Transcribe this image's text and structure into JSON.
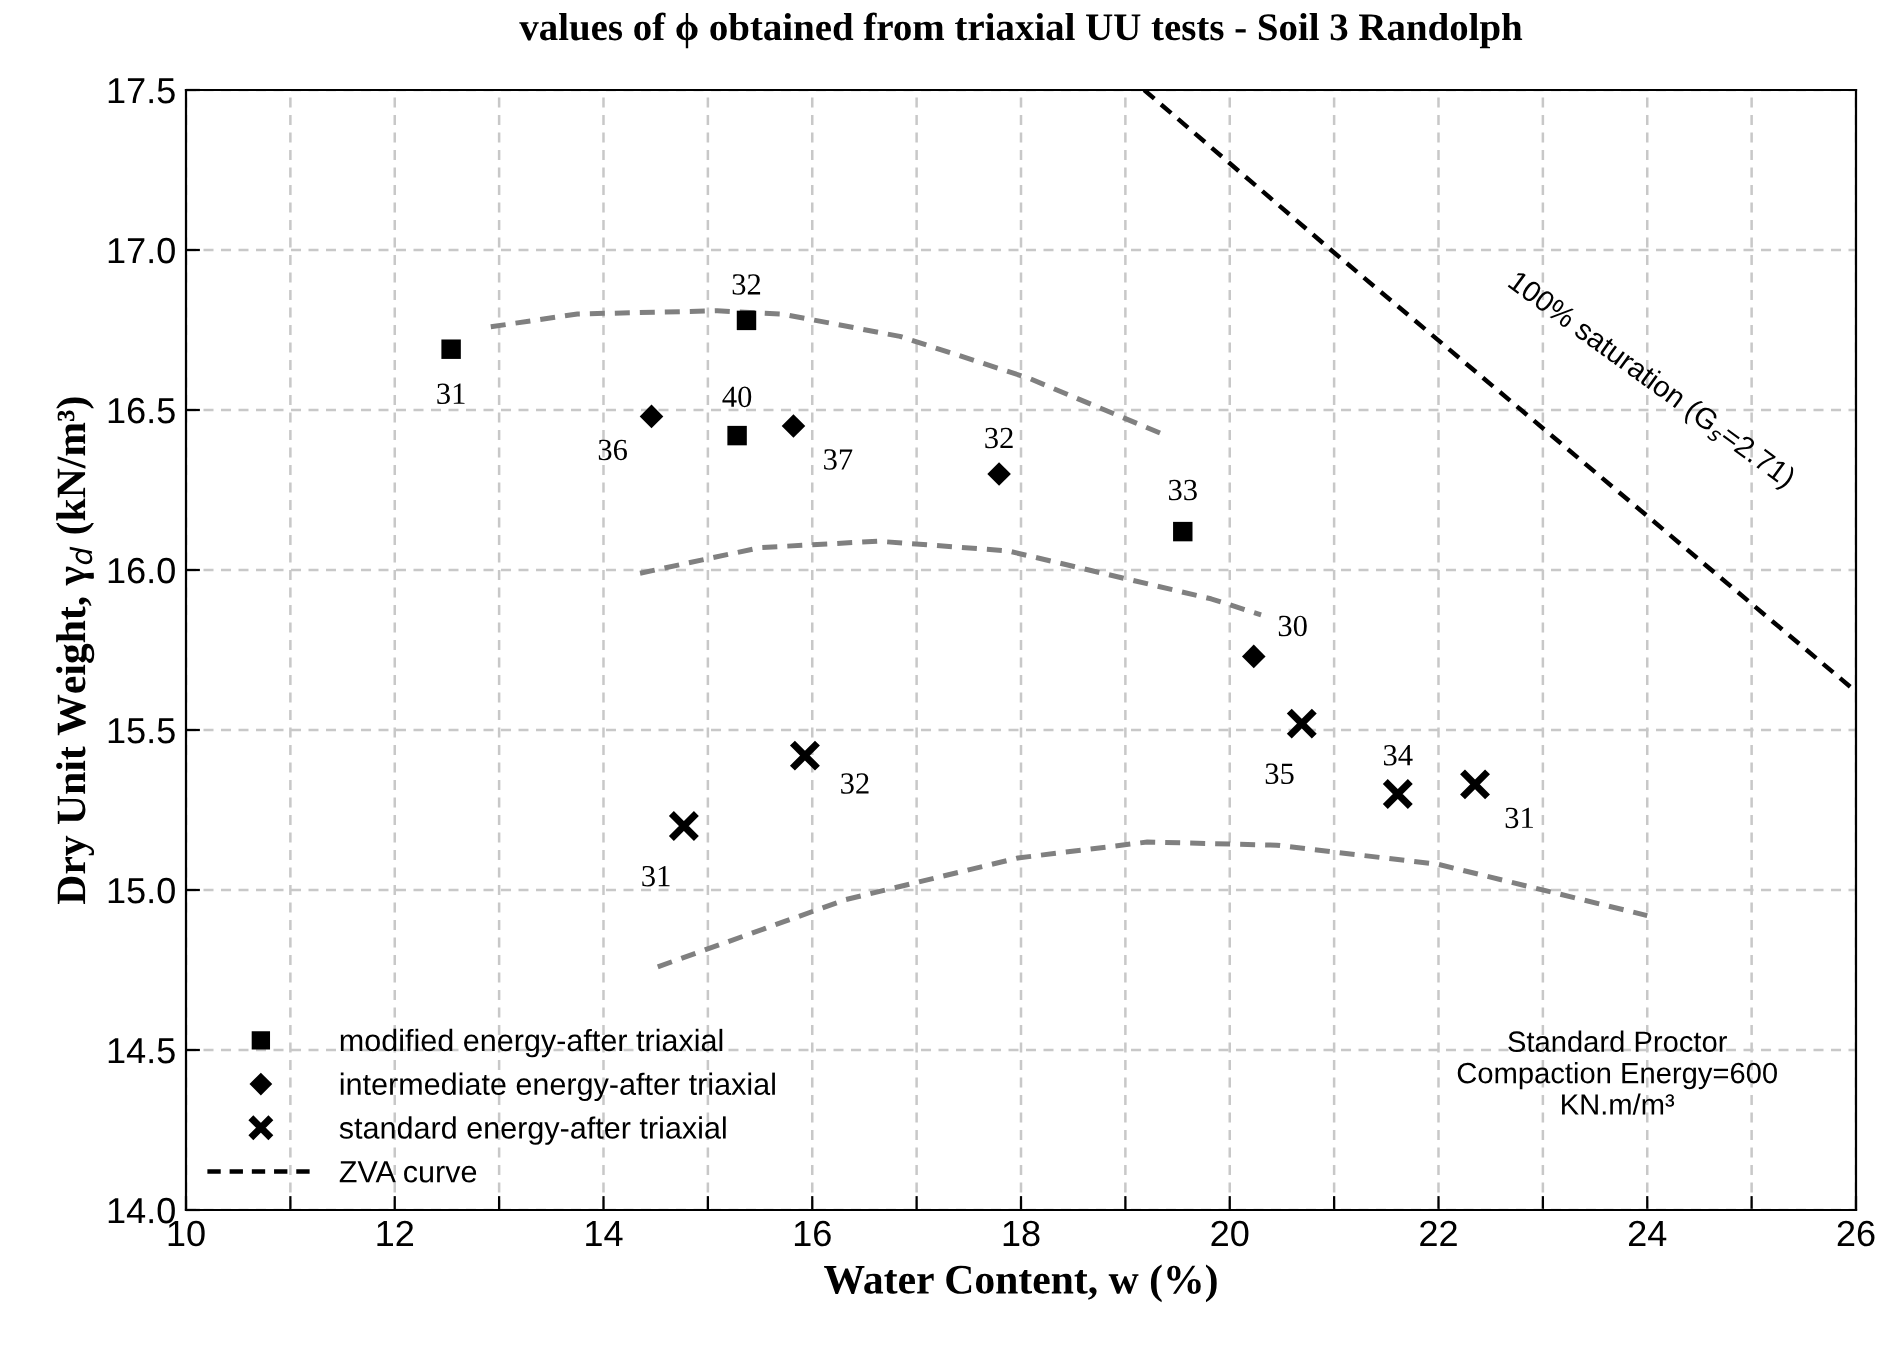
{
  "chart_data": {
    "type": "scatter",
    "title": "values of ϕ obtained from triaxial UU tests - Soil 3 Randolph",
    "xlabel": "Water Content, w (%)",
    "ylabel": "Dry Unit Weight, γ$_{d}$ (kN/m³)",
    "xlim": [
      10,
      26
    ],
    "ylim": [
      14,
      17.5
    ],
    "xticks": [
      10,
      {
        "value": 11,
        "label": null
      },
      12,
      {
        "value": 13,
        "label": null
      },
      14,
      {
        "value": 15,
        "label": null
      },
      16,
      {
        "value": 17,
        "label": null
      },
      18,
      {
        "value": 19,
        "label": null
      },
      20,
      {
        "value": 21,
        "label": null
      },
      22,
      {
        "value": 23,
        "label": null
      },
      24,
      {
        "value": 25,
        "label": null
      },
      26
    ],
    "yticks": [
      {
        "value": 14,
        "label": "14.0"
      },
      14.5,
      {
        "value": 15,
        "label": "15.0"
      },
      15.5,
      {
        "value": 16,
        "label": "16.0"
      },
      16.5,
      {
        "value": 17,
        "label": "17.0"
      },
      17.5
    ],
    "grid": true,
    "legend": "bottom left",
    "series": [
      {
        "name": "modified energy-after triaxial",
        "marker": "square",
        "color": "#000000",
        "x": [
          12.54,
          15.37,
          15.28,
          19.55
        ],
        "values": [
          16.69,
          16.78,
          16.42,
          16.12
        ]
      },
      {
        "name": "intermediate energy-after triaxial",
        "marker": "diamond",
        "color": "#000000",
        "x": [
          14.46,
          15.82,
          17.79,
          20.23
        ],
        "values": [
          16.48,
          16.45,
          16.3,
          15.73
        ]
      },
      {
        "name": "standard energy-after triaxial",
        "marker": "cross",
        "color": "#000000",
        "x": [
          14.77,
          15.93,
          20.69,
          21.61,
          22.35
        ],
        "values": [
          15.2,
          15.42,
          15.52,
          15.3,
          15.33
        ]
      },
      {
        "name": "ZVA curve",
        "type": "line",
        "line_style": "dashed",
        "color": "#000000",
        "x": [
          19.18,
          20.97,
          26
        ],
        "values": [
          17.5,
          17.0,
          15.62
        ]
      },
      {
        "type": "line",
        "line_style": "dashed",
        "color": "#808080",
        "x": [
          12.92,
          13.75,
          15.09,
          15.71,
          16.84,
          18.07,
          19.39
        ],
        "values": [
          16.76,
          16.8,
          16.81,
          16.8,
          16.73,
          16.6,
          16.42
        ]
      },
      {
        "type": "line",
        "line_style": "dashed",
        "color": "#808080",
        "x": [
          14.35,
          15.5,
          16.63,
          17.87,
          19.82,
          20.3
        ],
        "values": [
          15.99,
          16.07,
          16.09,
          16.06,
          15.91,
          15.86
        ]
      },
      {
        "type": "line",
        "line_style": "dashed",
        "color": "#808080",
        "x": [
          14.52,
          16.32,
          17.97,
          19.21,
          20.45,
          22.0,
          24.0
        ],
        "values": [
          14.76,
          14.97,
          15.1,
          15.15,
          15.14,
          15.08,
          14.92
        ]
      }
    ],
    "annotations": [
      {
        "text": "31",
        "x": 12.54,
        "y": 16.69
      },
      {
        "text": "32",
        "x": 15.37,
        "y": 16.78
      },
      {
        "text": "40",
        "x": 15.28,
        "y": 16.42
      },
      {
        "text": "33",
        "x": 19.55,
        "y": 16.12
      },
      {
        "text": "36",
        "x": 14.46,
        "y": 16.48
      },
      {
        "text": "37",
        "x": 15.82,
        "y": 16.45
      },
      {
        "text": "32",
        "x": 17.79,
        "y": 16.3
      },
      {
        "text": "30",
        "x": 20.23,
        "y": 15.73
      },
      {
        "text": "31",
        "x": 14.77,
        "y": 15.2
      },
      {
        "text": "32",
        "x": 15.93,
        "y": 15.42
      },
      {
        "text": "35",
        "x": 20.69,
        "y": 15.52
      },
      {
        "text": "34",
        "x": 21.61,
        "y": 15.3
      },
      {
        "text": "31",
        "x": 22.35,
        "y": 15.33
      },
      "100% saturation (G$_{s}$=2.71)",
      "Standard Proctor\nCompaction Energy=600\nKN.m/m³"
    ]
  }
}
